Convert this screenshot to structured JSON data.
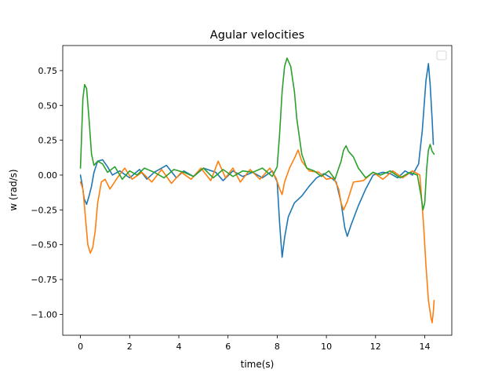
{
  "chart_data": {
    "type": "line",
    "title": "Agular velocities",
    "xlabel": "time(s)",
    "ylabel": "w (rad/s)",
    "xlim": [
      -0.72,
      15.1
    ],
    "ylim": [
      -1.15,
      0.93
    ],
    "xticks": [
      0,
      2,
      4,
      6,
      8,
      10,
      12,
      14
    ],
    "xtick_labels": [
      "0",
      "2",
      "4",
      "6",
      "8",
      "10",
      "12",
      "14"
    ],
    "yticks": [
      0.75,
      0.5,
      0.25,
      0.0,
      -0.25,
      -0.5,
      -0.75,
      -1.0
    ],
    "ytick_labels": [
      "0.75",
      "0.50",
      "0.25",
      "0.00",
      "−0.25",
      "−0.50",
      "−0.75",
      "−1.00"
    ],
    "grid": false,
    "legend": {
      "placement": "upper right",
      "entries": []
    },
    "series": [
      {
        "color": "#1f77b4",
        "points": [
          [
            0.0,
            0.0
          ],
          [
            0.08,
            -0.08
          ],
          [
            0.15,
            -0.17
          ],
          [
            0.25,
            -0.21
          ],
          [
            0.35,
            -0.15
          ],
          [
            0.45,
            -0.08
          ],
          [
            0.55,
            0.02
          ],
          [
            0.7,
            0.1
          ],
          [
            0.9,
            0.11
          ],
          [
            1.1,
            0.06
          ],
          [
            1.3,
            0.0
          ],
          [
            1.6,
            0.03
          ],
          [
            2.0,
            -0.02
          ],
          [
            2.4,
            0.04
          ],
          [
            2.7,
            -0.03
          ],
          [
            3.0,
            0.02
          ],
          [
            3.5,
            0.07
          ],
          [
            3.9,
            -0.02
          ],
          [
            4.2,
            0.03
          ],
          [
            4.6,
            -0.01
          ],
          [
            5.0,
            0.05
          ],
          [
            5.5,
            0.02
          ],
          [
            5.8,
            -0.04
          ],
          [
            6.2,
            0.03
          ],
          [
            6.6,
            -0.01
          ],
          [
            7.0,
            0.02
          ],
          [
            7.4,
            -0.02
          ],
          [
            7.8,
            0.03
          ],
          [
            8.0,
            -0.05
          ],
          [
            8.1,
            -0.35
          ],
          [
            8.2,
            -0.59
          ],
          [
            8.3,
            -0.45
          ],
          [
            8.45,
            -0.3
          ],
          [
            8.7,
            -0.2
          ],
          [
            9.0,
            -0.15
          ],
          [
            9.3,
            -0.08
          ],
          [
            9.6,
            -0.02
          ],
          [
            9.9,
            0.01
          ],
          [
            10.2,
            -0.02
          ],
          [
            10.4,
            -0.05
          ],
          [
            10.6,
            -0.2
          ],
          [
            10.75,
            -0.38
          ],
          [
            10.85,
            -0.44
          ],
          [
            11.0,
            -0.36
          ],
          [
            11.3,
            -0.22
          ],
          [
            11.6,
            -0.1
          ],
          [
            11.9,
            0.0
          ],
          [
            12.3,
            0.02
          ],
          [
            12.6,
            0.01
          ],
          [
            12.9,
            -0.02
          ],
          [
            13.2,
            0.03
          ],
          [
            13.5,
            0.0
          ],
          [
            13.75,
            0.08
          ],
          [
            13.9,
            0.32
          ],
          [
            14.05,
            0.68
          ],
          [
            14.15,
            0.8
          ],
          [
            14.22,
            0.65
          ],
          [
            14.3,
            0.4
          ],
          [
            14.35,
            0.22
          ]
        ]
      },
      {
        "color": "#ff7f0e",
        "points": [
          [
            0.0,
            -0.05
          ],
          [
            0.1,
            -0.1
          ],
          [
            0.2,
            -0.3
          ],
          [
            0.3,
            -0.5
          ],
          [
            0.4,
            -0.56
          ],
          [
            0.5,
            -0.52
          ],
          [
            0.6,
            -0.4
          ],
          [
            0.7,
            -0.2
          ],
          [
            0.85,
            -0.05
          ],
          [
            1.0,
            -0.03
          ],
          [
            1.2,
            -0.1
          ],
          [
            1.5,
            -0.02
          ],
          [
            1.8,
            0.05
          ],
          [
            2.1,
            -0.03
          ],
          [
            2.5,
            0.02
          ],
          [
            2.9,
            -0.05
          ],
          [
            3.3,
            0.04
          ],
          [
            3.7,
            -0.06
          ],
          [
            4.1,
            0.02
          ],
          [
            4.5,
            -0.03
          ],
          [
            4.9,
            0.05
          ],
          [
            5.3,
            -0.04
          ],
          [
            5.6,
            0.1
          ],
          [
            5.9,
            -0.02
          ],
          [
            6.2,
            0.05
          ],
          [
            6.5,
            -0.05
          ],
          [
            6.9,
            0.04
          ],
          [
            7.3,
            -0.03
          ],
          [
            7.7,
            0.05
          ],
          [
            7.95,
            -0.02
          ],
          [
            8.1,
            -0.1
          ],
          [
            8.2,
            -0.14
          ],
          [
            8.3,
            -0.05
          ],
          [
            8.5,
            0.05
          ],
          [
            8.7,
            0.12
          ],
          [
            8.85,
            0.18
          ],
          [
            9.0,
            0.1
          ],
          [
            9.3,
            0.03
          ],
          [
            9.7,
            0.02
          ],
          [
            10.0,
            -0.03
          ],
          [
            10.3,
            -0.02
          ],
          [
            10.5,
            -0.1
          ],
          [
            10.6,
            -0.2
          ],
          [
            10.7,
            -0.25
          ],
          [
            10.85,
            -0.19
          ],
          [
            11.1,
            -0.05
          ],
          [
            11.5,
            -0.04
          ],
          [
            11.9,
            0.02
          ],
          [
            12.3,
            -0.03
          ],
          [
            12.7,
            0.03
          ],
          [
            13.1,
            -0.02
          ],
          [
            13.5,
            0.03
          ],
          [
            13.8,
            0.0
          ],
          [
            13.95,
            -0.35
          ],
          [
            14.05,
            -0.65
          ],
          [
            14.15,
            -0.9
          ],
          [
            14.25,
            -1.02
          ],
          [
            14.3,
            -1.06
          ],
          [
            14.35,
            -0.98
          ],
          [
            14.38,
            -0.9
          ]
        ]
      },
      {
        "color": "#2ca02c",
        "points": [
          [
            0.0,
            0.05
          ],
          [
            0.05,
            0.3
          ],
          [
            0.1,
            0.55
          ],
          [
            0.17,
            0.65
          ],
          [
            0.25,
            0.62
          ],
          [
            0.35,
            0.4
          ],
          [
            0.45,
            0.15
          ],
          [
            0.55,
            0.07
          ],
          [
            0.7,
            0.1
          ],
          [
            0.9,
            0.08
          ],
          [
            1.1,
            0.02
          ],
          [
            1.4,
            0.06
          ],
          [
            1.7,
            -0.03
          ],
          [
            2.0,
            0.03
          ],
          [
            2.3,
            0.0
          ],
          [
            2.6,
            0.05
          ],
          [
            3.0,
            0.02
          ],
          [
            3.4,
            -0.02
          ],
          [
            3.8,
            0.04
          ],
          [
            4.2,
            0.02
          ],
          [
            4.6,
            -0.01
          ],
          [
            5.0,
            0.05
          ],
          [
            5.4,
            -0.02
          ],
          [
            5.8,
            0.04
          ],
          [
            6.2,
            -0.01
          ],
          [
            6.6,
            0.03
          ],
          [
            7.0,
            0.02
          ],
          [
            7.4,
            0.05
          ],
          [
            7.8,
            -0.01
          ],
          [
            8.0,
            0.06
          ],
          [
            8.1,
            0.3
          ],
          [
            8.2,
            0.6
          ],
          [
            8.3,
            0.78
          ],
          [
            8.4,
            0.84
          ],
          [
            8.55,
            0.78
          ],
          [
            8.7,
            0.6
          ],
          [
            8.8,
            0.4
          ],
          [
            9.0,
            0.15
          ],
          [
            9.2,
            0.05
          ],
          [
            9.5,
            0.03
          ],
          [
            9.8,
            -0.01
          ],
          [
            10.1,
            0.03
          ],
          [
            10.35,
            -0.03
          ],
          [
            10.5,
            0.05
          ],
          [
            10.6,
            0.1
          ],
          [
            10.7,
            0.18
          ],
          [
            10.8,
            0.21
          ],
          [
            10.9,
            0.17
          ],
          [
            11.1,
            0.13
          ],
          [
            11.3,
            0.05
          ],
          [
            11.6,
            -0.02
          ],
          [
            11.9,
            0.02
          ],
          [
            12.2,
            0.0
          ],
          [
            12.6,
            0.03
          ],
          [
            13.0,
            -0.02
          ],
          [
            13.4,
            0.02
          ],
          [
            13.7,
            0.0
          ],
          [
            13.85,
            -0.15
          ],
          [
            13.93,
            -0.25
          ],
          [
            14.0,
            -0.2
          ],
          [
            14.08,
            0.05
          ],
          [
            14.15,
            0.18
          ],
          [
            14.22,
            0.22
          ],
          [
            14.3,
            0.17
          ],
          [
            14.38,
            0.15
          ]
        ]
      }
    ]
  }
}
